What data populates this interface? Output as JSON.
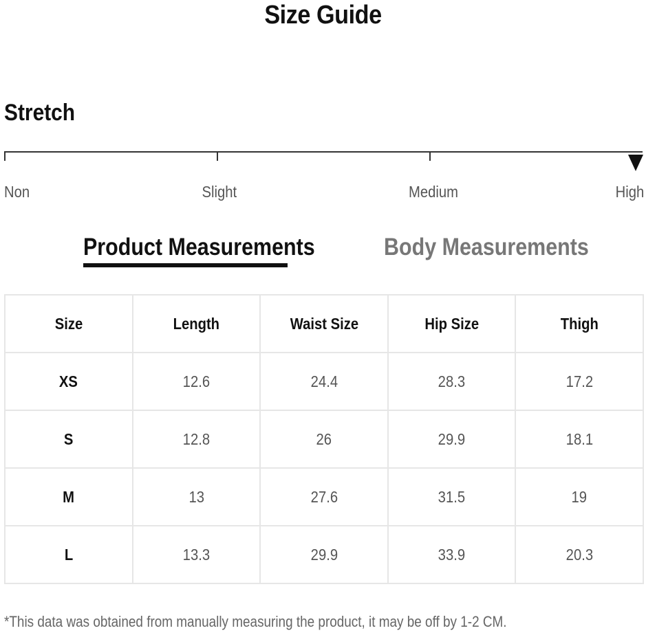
{
  "title": "Size Guide",
  "stretch": {
    "heading": "Stretch",
    "levels": [
      "Non",
      "Slight",
      "Medium",
      "High"
    ],
    "selected": "High"
  },
  "tabs": {
    "product": "Product Measurements",
    "body": "Body Measurements",
    "active": "Product Measurements"
  },
  "table": {
    "headers": [
      "Size",
      "Length",
      "Waist Size",
      "Hip Size",
      "Thigh"
    ],
    "rows": [
      [
        "XS",
        "12.6",
        "24.4",
        "28.3",
        "17.2"
      ],
      [
        "S",
        "12.8",
        "26",
        "29.9",
        "18.1"
      ],
      [
        "M",
        "13",
        "27.6",
        "31.5",
        "19"
      ],
      [
        "L",
        "13.3",
        "29.9",
        "33.9",
        "20.3"
      ]
    ]
  },
  "footnote": "*This data was obtained from manually measuring the product, it may be off by 1-2 CM.",
  "colors": {
    "text": "#111111",
    "muted": "#555555",
    "inactive_tab": "#777777",
    "border": "#e6e6e6"
  }
}
